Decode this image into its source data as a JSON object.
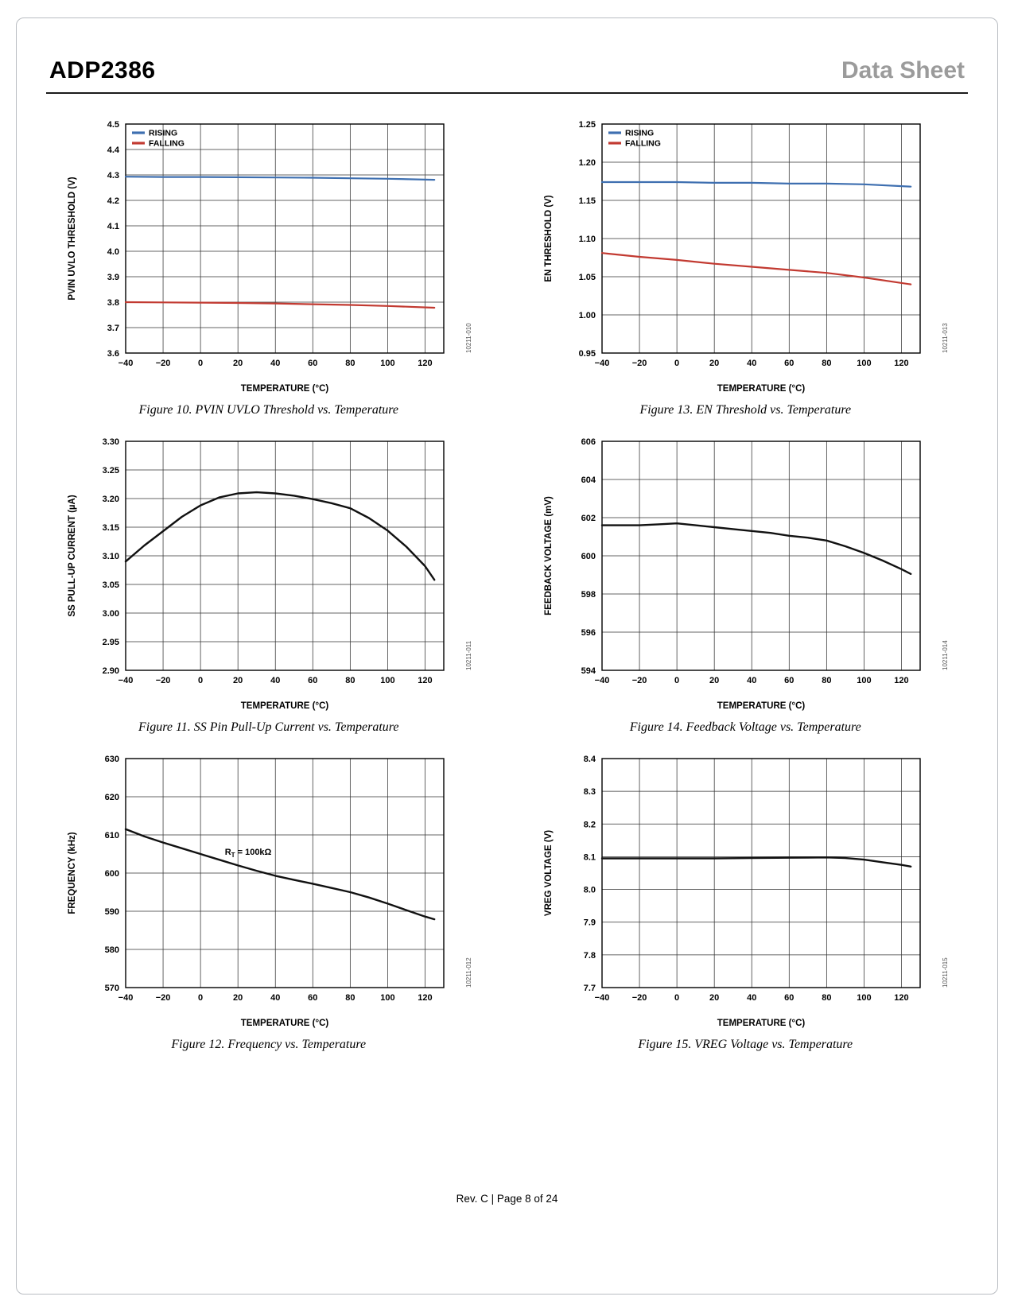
{
  "header": {
    "part": "ADP2386",
    "doc_type": "Data Sheet"
  },
  "footer": {
    "text": "Rev. C | Page 8 of 24"
  },
  "colors": {
    "rising_blue": "#3E6FB0",
    "falling_red": "#C23A31",
    "trace_black": "#111111"
  },
  "chart_data": [
    {
      "type": "line",
      "caption": "Figure 10. PVIN UVLO Threshold vs. Temperature",
      "code": "10211-010",
      "xlabel": "TEMPERATURE (°C)",
      "ylabel": "PVIN UVLO THRESHOLD (V)",
      "xlim": [
        -40,
        130
      ],
      "ylim": [
        3.6,
        4.5
      ],
      "legend": true,
      "x_ticks": [
        {
          "v": -40,
          "label": "−40"
        },
        {
          "v": -20,
          "label": "−20"
        },
        {
          "v": 0,
          "label": "0"
        },
        {
          "v": 20,
          "label": "20"
        },
        {
          "v": 40,
          "label": "40"
        },
        {
          "v": 60,
          "label": "60"
        },
        {
          "v": 80,
          "label": "80"
        },
        {
          "v": 100,
          "label": "100"
        },
        {
          "v": 120,
          "label": "120"
        }
      ],
      "y_ticks": [
        {
          "v": 3.6,
          "label": "3.6"
        },
        {
          "v": 3.7,
          "label": "3.7"
        },
        {
          "v": 3.8,
          "label": "3.8"
        },
        {
          "v": 3.9,
          "label": "3.9"
        },
        {
          "v": 4.0,
          "label": "4.0"
        },
        {
          "v": 4.1,
          "label": "4.1"
        },
        {
          "v": 4.2,
          "label": "4.2"
        },
        {
          "v": 4.3,
          "label": "4.3"
        },
        {
          "v": 4.4,
          "label": "4.4"
        },
        {
          "v": 4.5,
          "label": "4.5"
        }
      ],
      "series": [
        {
          "name": "RISING",
          "color": "#3E6FB0",
          "points": [
            [
              -40,
              4.293
            ],
            [
              -20,
              4.292
            ],
            [
              0,
              4.292
            ],
            [
              20,
              4.291
            ],
            [
              40,
              4.29
            ],
            [
              60,
              4.289
            ],
            [
              80,
              4.287
            ],
            [
              100,
              4.285
            ],
            [
              125,
              4.281
            ]
          ]
        },
        {
          "name": "FALLING",
          "color": "#C23A31",
          "points": [
            [
              -40,
              3.8
            ],
            [
              -20,
              3.799
            ],
            [
              0,
              3.798
            ],
            [
              20,
              3.797
            ],
            [
              40,
              3.795
            ],
            [
              60,
              3.792
            ],
            [
              80,
              3.789
            ],
            [
              100,
              3.785
            ],
            [
              125,
              3.778
            ]
          ]
        }
      ]
    },
    {
      "type": "line",
      "caption": "Figure 13. EN Threshold vs. Temperature",
      "code": "10211-013",
      "xlabel": "TEMPERATURE (°C)",
      "ylabel": "EN THRESHOLD (V)",
      "xlim": [
        -40,
        130
      ],
      "ylim": [
        0.95,
        1.25
      ],
      "legend": true,
      "x_ticks": [
        {
          "v": -40,
          "label": "−40"
        },
        {
          "v": -20,
          "label": "−20"
        },
        {
          "v": 0,
          "label": "0"
        },
        {
          "v": 20,
          "label": "20"
        },
        {
          "v": 40,
          "label": "40"
        },
        {
          "v": 60,
          "label": "60"
        },
        {
          "v": 80,
          "label": "80"
        },
        {
          "v": 100,
          "label": "100"
        },
        {
          "v": 120,
          "label": "120"
        }
      ],
      "y_ticks": [
        {
          "v": 0.95,
          "label": "0.95"
        },
        {
          "v": 1.0,
          "label": "1.00"
        },
        {
          "v": 1.05,
          "label": "1.05"
        },
        {
          "v": 1.1,
          "label": "1.10"
        },
        {
          "v": 1.15,
          "label": "1.15"
        },
        {
          "v": 1.2,
          "label": "1.20"
        },
        {
          "v": 1.25,
          "label": "1.25"
        }
      ],
      "series": [
        {
          "name": "RISING",
          "color": "#3E6FB0",
          "points": [
            [
              -40,
              1.174
            ],
            [
              -20,
              1.174
            ],
            [
              0,
              1.174
            ],
            [
              20,
              1.173
            ],
            [
              40,
              1.173
            ],
            [
              60,
              1.172
            ],
            [
              80,
              1.172
            ],
            [
              100,
              1.171
            ],
            [
              125,
              1.168
            ]
          ]
        },
        {
          "name": "FALLING",
          "color": "#C23A31",
          "points": [
            [
              -40,
              1.081
            ],
            [
              -20,
              1.076
            ],
            [
              0,
              1.072
            ],
            [
              20,
              1.067
            ],
            [
              40,
              1.063
            ],
            [
              60,
              1.059
            ],
            [
              80,
              1.055
            ],
            [
              100,
              1.049
            ],
            [
              125,
              1.04
            ]
          ]
        }
      ]
    },
    {
      "type": "line",
      "caption": "Figure 11. SS Pin Pull-Up Current vs. Temperature",
      "code": "10211-011",
      "xlabel": "TEMPERATURE (°C)",
      "ylabel": "SS PULL-UP CURRENT (µA)",
      "xlim": [
        -40,
        130
      ],
      "ylim": [
        2.9,
        3.3
      ],
      "legend": false,
      "x_ticks": [
        {
          "v": -40,
          "label": "−40"
        },
        {
          "v": -20,
          "label": "−20"
        },
        {
          "v": 0,
          "label": "0"
        },
        {
          "v": 20,
          "label": "20"
        },
        {
          "v": 40,
          "label": "40"
        },
        {
          "v": 60,
          "label": "60"
        },
        {
          "v": 80,
          "label": "80"
        },
        {
          "v": 100,
          "label": "100"
        },
        {
          "v": 120,
          "label": "120"
        }
      ],
      "y_ticks": [
        {
          "v": 2.9,
          "label": "2.90"
        },
        {
          "v": 2.95,
          "label": "2.95"
        },
        {
          "v": 3.0,
          "label": "3.00"
        },
        {
          "v": 3.05,
          "label": "3.05"
        },
        {
          "v": 3.1,
          "label": "3.10"
        },
        {
          "v": 3.15,
          "label": "3.15"
        },
        {
          "v": 3.2,
          "label": "3.20"
        },
        {
          "v": 3.25,
          "label": "3.25"
        },
        {
          "v": 3.3,
          "label": "3.30"
        }
      ],
      "series": [
        {
          "name": "SS PULL-UP CURRENT",
          "color": "#111111",
          "points": [
            [
              -40,
              3.09
            ],
            [
              -30,
              3.118
            ],
            [
              -20,
              3.143
            ],
            [
              -10,
              3.168
            ],
            [
              0,
              3.188
            ],
            [
              10,
              3.202
            ],
            [
              20,
              3.209
            ],
            [
              30,
              3.211
            ],
            [
              40,
              3.209
            ],
            [
              50,
              3.205
            ],
            [
              60,
              3.199
            ],
            [
              70,
              3.192
            ],
            [
              80,
              3.183
            ],
            [
              90,
              3.166
            ],
            [
              100,
              3.144
            ],
            [
              110,
              3.116
            ],
            [
              120,
              3.082
            ],
            [
              125,
              3.058
            ]
          ]
        }
      ]
    },
    {
      "type": "line",
      "caption": "Figure 14. Feedback Voltage vs. Temperature",
      "code": "10211-014",
      "xlabel": "TEMPERATURE (°C)",
      "ylabel": "FEEDBACK VOLTAGE (mV)",
      "xlim": [
        -40,
        130
      ],
      "ylim": [
        594,
        606
      ],
      "legend": false,
      "x_ticks": [
        {
          "v": -40,
          "label": "−40"
        },
        {
          "v": -20,
          "label": "−20"
        },
        {
          "v": 0,
          "label": "0"
        },
        {
          "v": 20,
          "label": "20"
        },
        {
          "v": 40,
          "label": "40"
        },
        {
          "v": 60,
          "label": "60"
        },
        {
          "v": 80,
          "label": "80"
        },
        {
          "v": 100,
          "label": "100"
        },
        {
          "v": 120,
          "label": "120"
        }
      ],
      "y_ticks": [
        {
          "v": 594,
          "label": "594"
        },
        {
          "v": 596,
          "label": "596"
        },
        {
          "v": 598,
          "label": "598"
        },
        {
          "v": 600,
          "label": "600"
        },
        {
          "v": 602,
          "label": "602"
        },
        {
          "v": 604,
          "label": "604"
        },
        {
          "v": 606,
          "label": "606"
        }
      ],
      "series": [
        {
          "name": "FEEDBACK VOLTAGE",
          "color": "#111111",
          "points": [
            [
              -40,
              601.6
            ],
            [
              -30,
              601.6
            ],
            [
              -20,
              601.6
            ],
            [
              -10,
              601.65
            ],
            [
              0,
              601.7
            ],
            [
              10,
              601.6
            ],
            [
              20,
              601.5
            ],
            [
              30,
              601.4
            ],
            [
              40,
              601.3
            ],
            [
              50,
              601.2
            ],
            [
              60,
              601.05
            ],
            [
              70,
              600.95
            ],
            [
              80,
              600.8
            ],
            [
              90,
              600.5
            ],
            [
              100,
              600.15
            ],
            [
              110,
              599.75
            ],
            [
              120,
              599.3
            ],
            [
              125,
              599.05
            ]
          ]
        }
      ]
    },
    {
      "type": "line",
      "caption": "Figure 12. Frequency vs. Temperature",
      "code": "10211-012",
      "xlabel": "TEMPERATURE (°C)",
      "ylabel": "FREQUENCY (kHz)",
      "xlim": [
        -40,
        130
      ],
      "ylim": [
        570,
        630
      ],
      "legend": false,
      "annotation": {
        "pre": "R",
        "sub": "T",
        "post": " = 100kΩ",
        "x": 13,
        "y": 604.8
      },
      "x_ticks": [
        {
          "v": -40,
          "label": "−40"
        },
        {
          "v": -20,
          "label": "−20"
        },
        {
          "v": 0,
          "label": "0"
        },
        {
          "v": 20,
          "label": "20"
        },
        {
          "v": 40,
          "label": "40"
        },
        {
          "v": 60,
          "label": "60"
        },
        {
          "v": 80,
          "label": "80"
        },
        {
          "v": 100,
          "label": "100"
        },
        {
          "v": 120,
          "label": "120"
        }
      ],
      "y_ticks": [
        {
          "v": 570,
          "label": "570"
        },
        {
          "v": 580,
          "label": "580"
        },
        {
          "v": 590,
          "label": "590"
        },
        {
          "v": 600,
          "label": "600"
        },
        {
          "v": 610,
          "label": "610"
        },
        {
          "v": 620,
          "label": "620"
        },
        {
          "v": 630,
          "label": "630"
        }
      ],
      "series": [
        {
          "name": "FREQUENCY",
          "color": "#111111",
          "points": [
            [
              -40,
              611.5
            ],
            [
              -30,
              609.6
            ],
            [
              -20,
              608.0
            ],
            [
              -10,
              606.5
            ],
            [
              0,
              605.0
            ],
            [
              10,
              603.5
            ],
            [
              20,
              602.0
            ],
            [
              30,
              600.6
            ],
            [
              40,
              599.3
            ],
            [
              50,
              598.2
            ],
            [
              60,
              597.2
            ],
            [
              70,
              596.1
            ],
            [
              80,
              595.0
            ],
            [
              90,
              593.6
            ],
            [
              100,
              592.0
            ],
            [
              110,
              590.3
            ],
            [
              120,
              588.6
            ],
            [
              125,
              587.9
            ]
          ]
        }
      ]
    },
    {
      "type": "line",
      "caption": "Figure 15. VREG Voltage vs. Temperature",
      "code": "10211-015",
      "xlabel": "TEMPERATURE (°C)",
      "ylabel": "VREG VOLTAGE (V)",
      "xlim": [
        -40,
        130
      ],
      "ylim": [
        7.7,
        8.4
      ],
      "legend": false,
      "x_ticks": [
        {
          "v": -40,
          "label": "−40"
        },
        {
          "v": -20,
          "label": "−20"
        },
        {
          "v": 0,
          "label": "0"
        },
        {
          "v": 20,
          "label": "20"
        },
        {
          "v": 40,
          "label": "40"
        },
        {
          "v": 60,
          "label": "60"
        },
        {
          "v": 80,
          "label": "80"
        },
        {
          "v": 100,
          "label": "100"
        },
        {
          "v": 120,
          "label": "120"
        }
      ],
      "y_ticks": [
        {
          "v": 7.7,
          "label": "7.7"
        },
        {
          "v": 7.8,
          "label": "7.8"
        },
        {
          "v": 7.9,
          "label": "7.9"
        },
        {
          "v": 8.0,
          "label": "8.0"
        },
        {
          "v": 8.1,
          "label": "8.1"
        },
        {
          "v": 8.2,
          "label": "8.2"
        },
        {
          "v": 8.3,
          "label": "8.3"
        },
        {
          "v": 8.4,
          "label": "8.4"
        }
      ],
      "series": [
        {
          "name": "VREG VOLTAGE",
          "color": "#111111",
          "points": [
            [
              -40,
              8.095
            ],
            [
              -20,
              8.095
            ],
            [
              0,
              8.095
            ],
            [
              20,
              8.095
            ],
            [
              40,
              8.096
            ],
            [
              60,
              8.097
            ],
            [
              80,
              8.098
            ],
            [
              90,
              8.096
            ],
            [
              100,
              8.091
            ],
            [
              110,
              8.083
            ],
            [
              120,
              8.075
            ],
            [
              125,
              8.07
            ]
          ]
        }
      ]
    }
  ]
}
